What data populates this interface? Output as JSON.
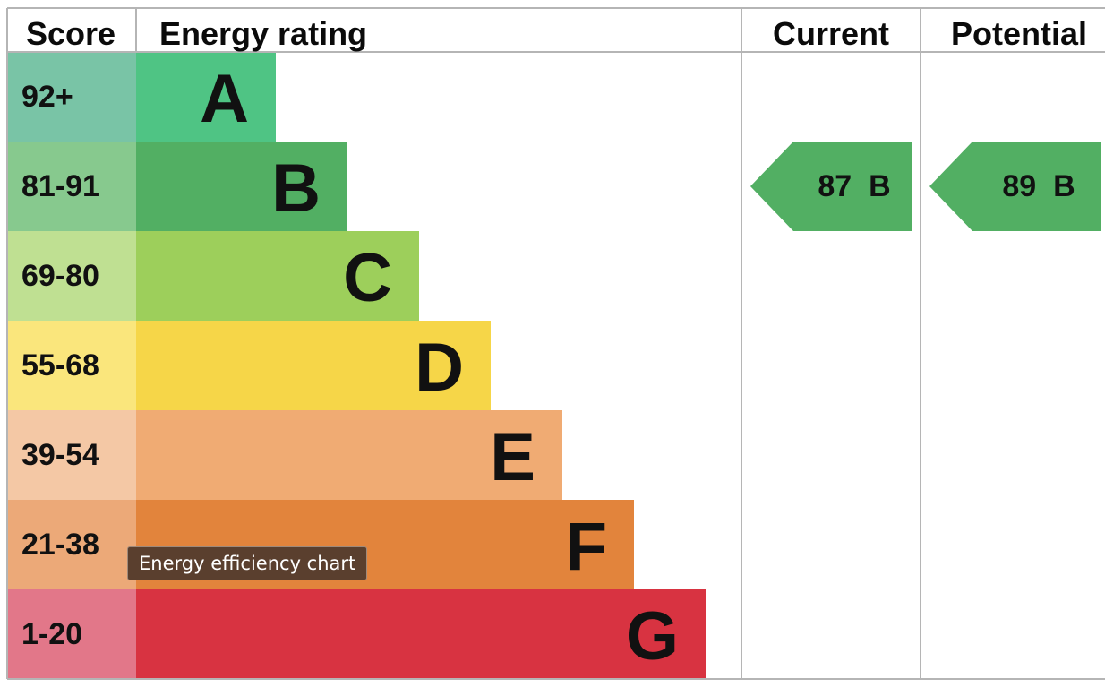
{
  "chart_data": {
    "type": "table",
    "headers": {
      "score": "Score",
      "rating": "Energy rating",
      "current": "Current",
      "potential": "Potential"
    },
    "bands": [
      {
        "score": "92+",
        "letter": "A",
        "bar_color": "#4fc484",
        "score_color": "#79c4a6"
      },
      {
        "score": "81-91",
        "letter": "B",
        "bar_color": "#52af63",
        "score_color": "#87c98e"
      },
      {
        "score": "69-80",
        "letter": "C",
        "bar_color": "#9dcf5b",
        "score_color": "#bfe092"
      },
      {
        "score": "55-68",
        "letter": "D",
        "bar_color": "#f6d648",
        "score_color": "#fae67c"
      },
      {
        "score": "39-54",
        "letter": "E",
        "bar_color": "#f0ab73",
        "score_color": "#f4c8a5"
      },
      {
        "score": "21-38",
        "letter": "F",
        "bar_color": "#e2843c",
        "score_color": "#eca978"
      },
      {
        "score": "1-20",
        "letter": "G",
        "bar_color": "#d83341",
        "score_color": "#e27789"
      }
    ],
    "current": {
      "value": 87,
      "band": "B",
      "label": "87  B",
      "color": "#52af63"
    },
    "potential": {
      "value": 89,
      "band": "B",
      "label": "89  B",
      "color": "#52af63"
    }
  },
  "tooltip": {
    "text": "Energy efficiency chart"
  }
}
